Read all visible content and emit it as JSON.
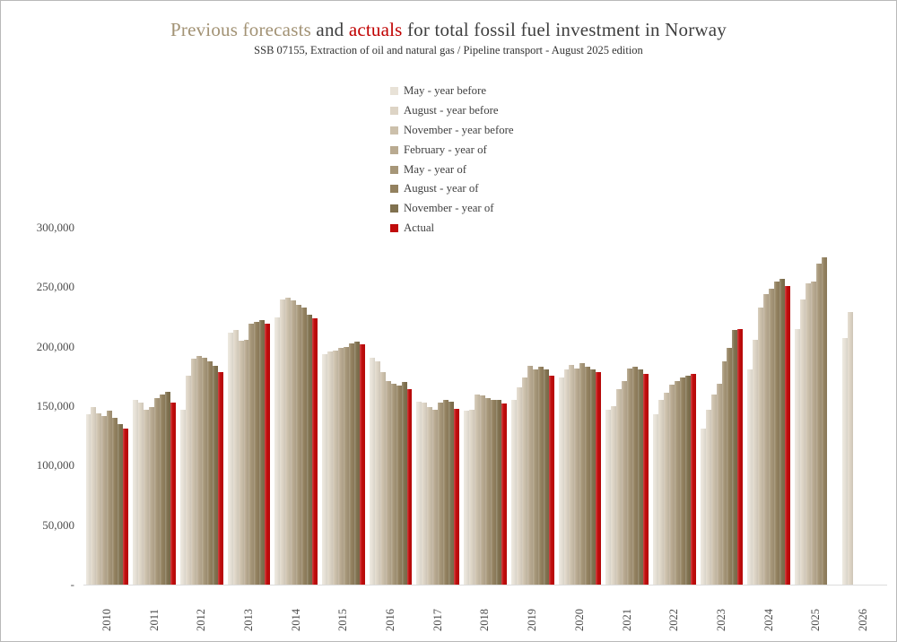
{
  "page": {
    "title_part_forecast": "Previous forecasts",
    "title_part_and": " and ",
    "title_part_actual": "actuals",
    "title_part_rest": " for total fossil fuel investment in Norway",
    "subtitle": "SSB 07155, Extraction of oil and natural gas / Pipeline transport - August 2025 edition",
    "title_color_forecast": "#a29274",
    "title_color_actual": "#c00000",
    "title_color_main": "#3f3f3f"
  },
  "chart_data": {
    "type": "bar",
    "title": "Previous forecasts and actuals for total fossil fuel investment in Norway",
    "subtitle": "SSB 07155, Extraction of oil and natural gas / Pipeline transport - August 2025 edition",
    "xlabel": "",
    "ylabel": "",
    "ylim": [
      0,
      300000
    ],
    "grid": false,
    "legend_position": "top-center",
    "ytick_values": [
      300000,
      250000,
      200000,
      150000,
      100000,
      50000,
      0
    ],
    "ytick_labels": [
      "300,000",
      "250,000",
      "200,000",
      "150,000",
      "100,000",
      "50,000",
      "-"
    ],
    "categories": [
      "2010",
      "2011",
      "2012",
      "2013",
      "2014",
      "2015",
      "2016",
      "2017",
      "2018",
      "2019",
      "2020",
      "2021",
      "2022",
      "2023",
      "2024",
      "2025",
      "2026"
    ],
    "series": [
      {
        "name": "May - year before",
        "color": "#e8e2d7",
        "values": [
          143000,
          155000,
          147000,
          212000,
          225000,
          194000,
          191000,
          154000,
          146000,
          155000,
          174000,
          147000,
          143000,
          131000,
          181000,
          215000,
          207000
        ]
      },
      {
        "name": "August - year before",
        "color": "#ddd4c5",
        "values": [
          149000,
          153000,
          176000,
          214000,
          240000,
          196000,
          188000,
          153000,
          147000,
          166000,
          181000,
          150000,
          155000,
          147000,
          206000,
          240000,
          229000
        ]
      },
      {
        "name": "November - year before",
        "color": "#ccc0ab",
        "values": [
          144000,
          147000,
          190000,
          205000,
          241000,
          197000,
          179000,
          149000,
          160000,
          174000,
          185000,
          164000,
          161000,
          160000,
          233000,
          253000,
          null
        ]
      },
      {
        "name": "February - year of",
        "color": "#b9aa91",
        "values": [
          142000,
          149000,
          192000,
          206000,
          239000,
          199000,
          171000,
          147000,
          159000,
          184000,
          182000,
          171000,
          168000,
          169000,
          244000,
          255000,
          null
        ]
      },
      {
        "name": "May - year of",
        "color": "#a69678",
        "values": [
          146000,
          157000,
          191000,
          219000,
          235000,
          200000,
          169000,
          153000,
          157000,
          181000,
          186000,
          182000,
          171000,
          188000,
          249000,
          270000,
          null
        ]
      },
      {
        "name": "August - year of",
        "color": "#93815f",
        "values": [
          140000,
          160000,
          188000,
          221000,
          233000,
          203000,
          167000,
          155000,
          155000,
          183000,
          183000,
          183000,
          174000,
          199000,
          255000,
          275000,
          null
        ]
      },
      {
        "name": "November - year of",
        "color": "#80714f",
        "values": [
          135000,
          162000,
          184000,
          222000,
          227000,
          204000,
          170000,
          154000,
          155000,
          181000,
          181000,
          181000,
          176000,
          214000,
          257000,
          null,
          null
        ]
      },
      {
        "name": "Actual",
        "color": "#c00b0b",
        "values": [
          131000,
          153000,
          179000,
          219000,
          224000,
          202000,
          164000,
          148000,
          152000,
          176000,
          179000,
          177000,
          177000,
          215000,
          251000,
          null,
          null
        ]
      }
    ]
  }
}
